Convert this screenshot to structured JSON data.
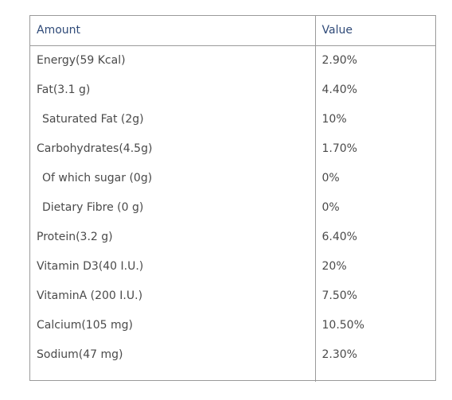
{
  "table": {
    "headers": {
      "amount": "Amount",
      "value": "Value"
    },
    "rows": [
      {
        "label": "Energy(59 Kcal)",
        "value": "2.90%",
        "indent": false
      },
      {
        "label": "Fat(3.1 g)",
        "value": "4.40%",
        "indent": false
      },
      {
        "label": "Saturated Fat (2g)",
        "value": "10%",
        "indent": true
      },
      {
        "label": "Carbohydrates(4.5g)",
        "value": "1.70%",
        "indent": false
      },
      {
        "label": "Of which sugar (0g)",
        "value": "0%",
        "indent": true
      },
      {
        "label": "Dietary Fibre (0 g)",
        "value": "0%",
        "indent": true
      },
      {
        "label": "Protein(3.2 g)",
        "value": "6.40%",
        "indent": false
      },
      {
        "label": "Vitamin D3(40 I.U.)",
        "value": "20%",
        "indent": false
      },
      {
        "label": "VitaminA (200 I.U.)",
        "value": "7.50%",
        "indent": false
      },
      {
        "label": "Calcium(105 mg)",
        "value": "10.50%",
        "indent": false
      },
      {
        "label": "Sodium(47 mg)",
        "value": "2.30%",
        "indent": false
      }
    ]
  },
  "colors": {
    "header_text": "#2f4a78",
    "body_text": "#4a4a4a",
    "border": "#9a9a9a"
  }
}
